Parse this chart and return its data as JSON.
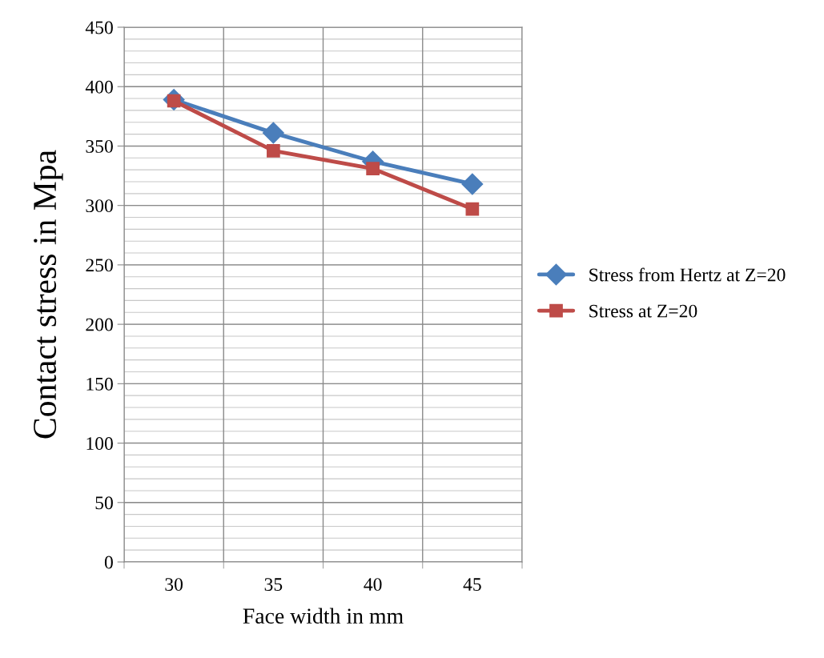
{
  "chart_data": {
    "type": "line",
    "xlabel": "Face width in mm",
    "ylabel": "Contact stress in Mpa",
    "categories": [
      "30",
      "35",
      "40",
      "45"
    ],
    "series": [
      {
        "name": "Stress from Hertz at Z=20",
        "color": "#4a7ebb",
        "marker": "diamond",
        "values": [
          389,
          361,
          337,
          318
        ]
      },
      {
        "name": "Stress at Z=20",
        "color": "#be4b48",
        "marker": "square",
        "values": [
          388,
          346,
          331,
          297
        ]
      }
    ],
    "ylim": [
      0,
      450
    ],
    "yticks": [
      0,
      50,
      100,
      150,
      200,
      250,
      300,
      350,
      400,
      450
    ],
    "grid": true,
    "legend": "right",
    "line_style": "solid"
  }
}
